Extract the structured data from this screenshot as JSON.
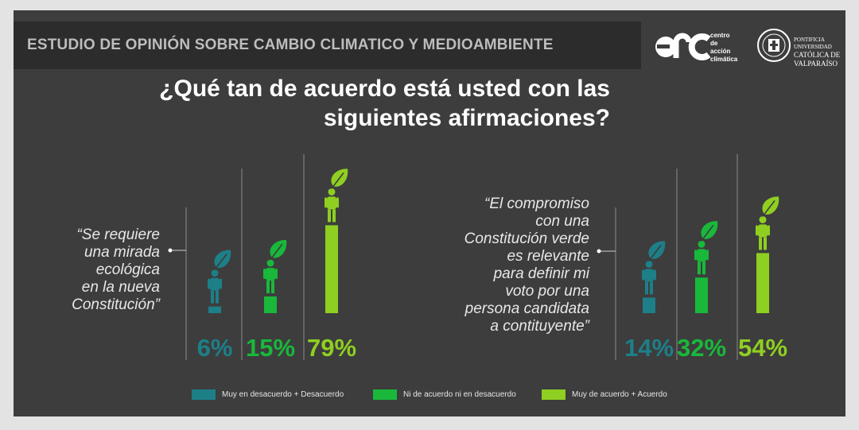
{
  "header": {
    "banner": "ESTUDIO DE OPINIÓN SOBRE CAMBIO CLIMATICO Y MEDIOAMBIENTE"
  },
  "logos": {
    "cac": [
      "centro",
      "de",
      "acción",
      "climática"
    ],
    "puc": [
      "PONTIFICIA",
      "UNIVERSIDAD",
      "CATÓLICA DE",
      "VALPARAÍSO"
    ]
  },
  "question": [
    "¿Qué tan de acuerdo está usted con las",
    "siguientes afirmaciones?"
  ],
  "colors": {
    "disagree": "#1d7f88",
    "neutral": "#19b83b",
    "agree": "#8fcf21"
  },
  "chart_data": {
    "type": "bar",
    "unit": "%",
    "legend_position": "bottom",
    "series_names": [
      "Muy en desacuerdo + Desacuerdo",
      "Ni de acuerdo ni en desacuerdo",
      "Muy de acuerdo + Acuerdo"
    ],
    "groups": [
      {
        "statement": [
          "“Se requiere",
          "una mirada",
          "ecológica",
          "en la nueva",
          "Constitución”"
        ],
        "values": [
          6,
          15,
          79
        ],
        "labels": [
          "6%",
          "15%",
          "79%"
        ]
      },
      {
        "statement": [
          "“El compromiso",
          "con una",
          "Constitución verde",
          "es relevante",
          "para definir mi",
          "voto por una",
          "persona candidata",
          "a contituyente”"
        ],
        "values": [
          14,
          32,
          54
        ],
        "labels": [
          "14%",
          "32%",
          "54%"
        ]
      }
    ]
  }
}
